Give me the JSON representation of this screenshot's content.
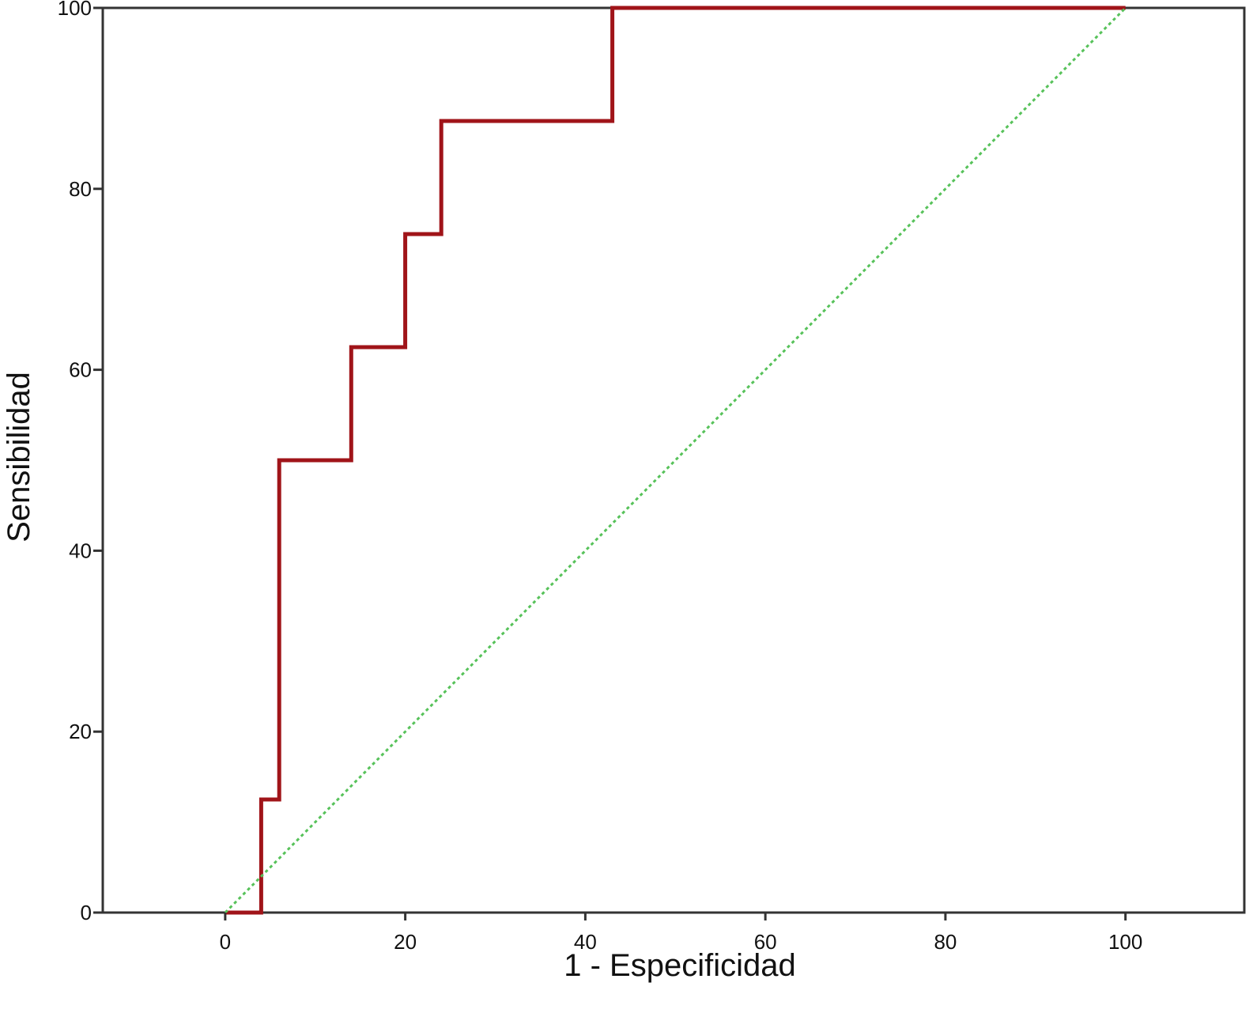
{
  "chart_data": {
    "type": "line",
    "title": "",
    "xlabel": "1 - Especificidad",
    "ylabel": "Sensibilidad",
    "xlim": [
      -13.6,
      113.2
    ],
    "ylim": [
      0,
      100
    ],
    "x_ticks": [
      0,
      20,
      40,
      60,
      80,
      100
    ],
    "y_ticks": [
      0,
      20,
      40,
      60,
      80,
      100
    ],
    "grid": false,
    "series": [
      {
        "style": "step",
        "color": "#a01419",
        "x": [
          0,
          4,
          4,
          6,
          6,
          14,
          14,
          20,
          20,
          24,
          24,
          43,
          43,
          100
        ],
        "y": [
          0,
          0,
          12.5,
          12.5,
          50,
          50,
          62.5,
          62.5,
          75,
          75,
          87.5,
          87.5,
          100,
          100
        ]
      },
      {
        "style": "dotted",
        "color": "#57c25a",
        "x": [
          0,
          100
        ],
        "y": [
          0,
          100
        ]
      }
    ]
  }
}
